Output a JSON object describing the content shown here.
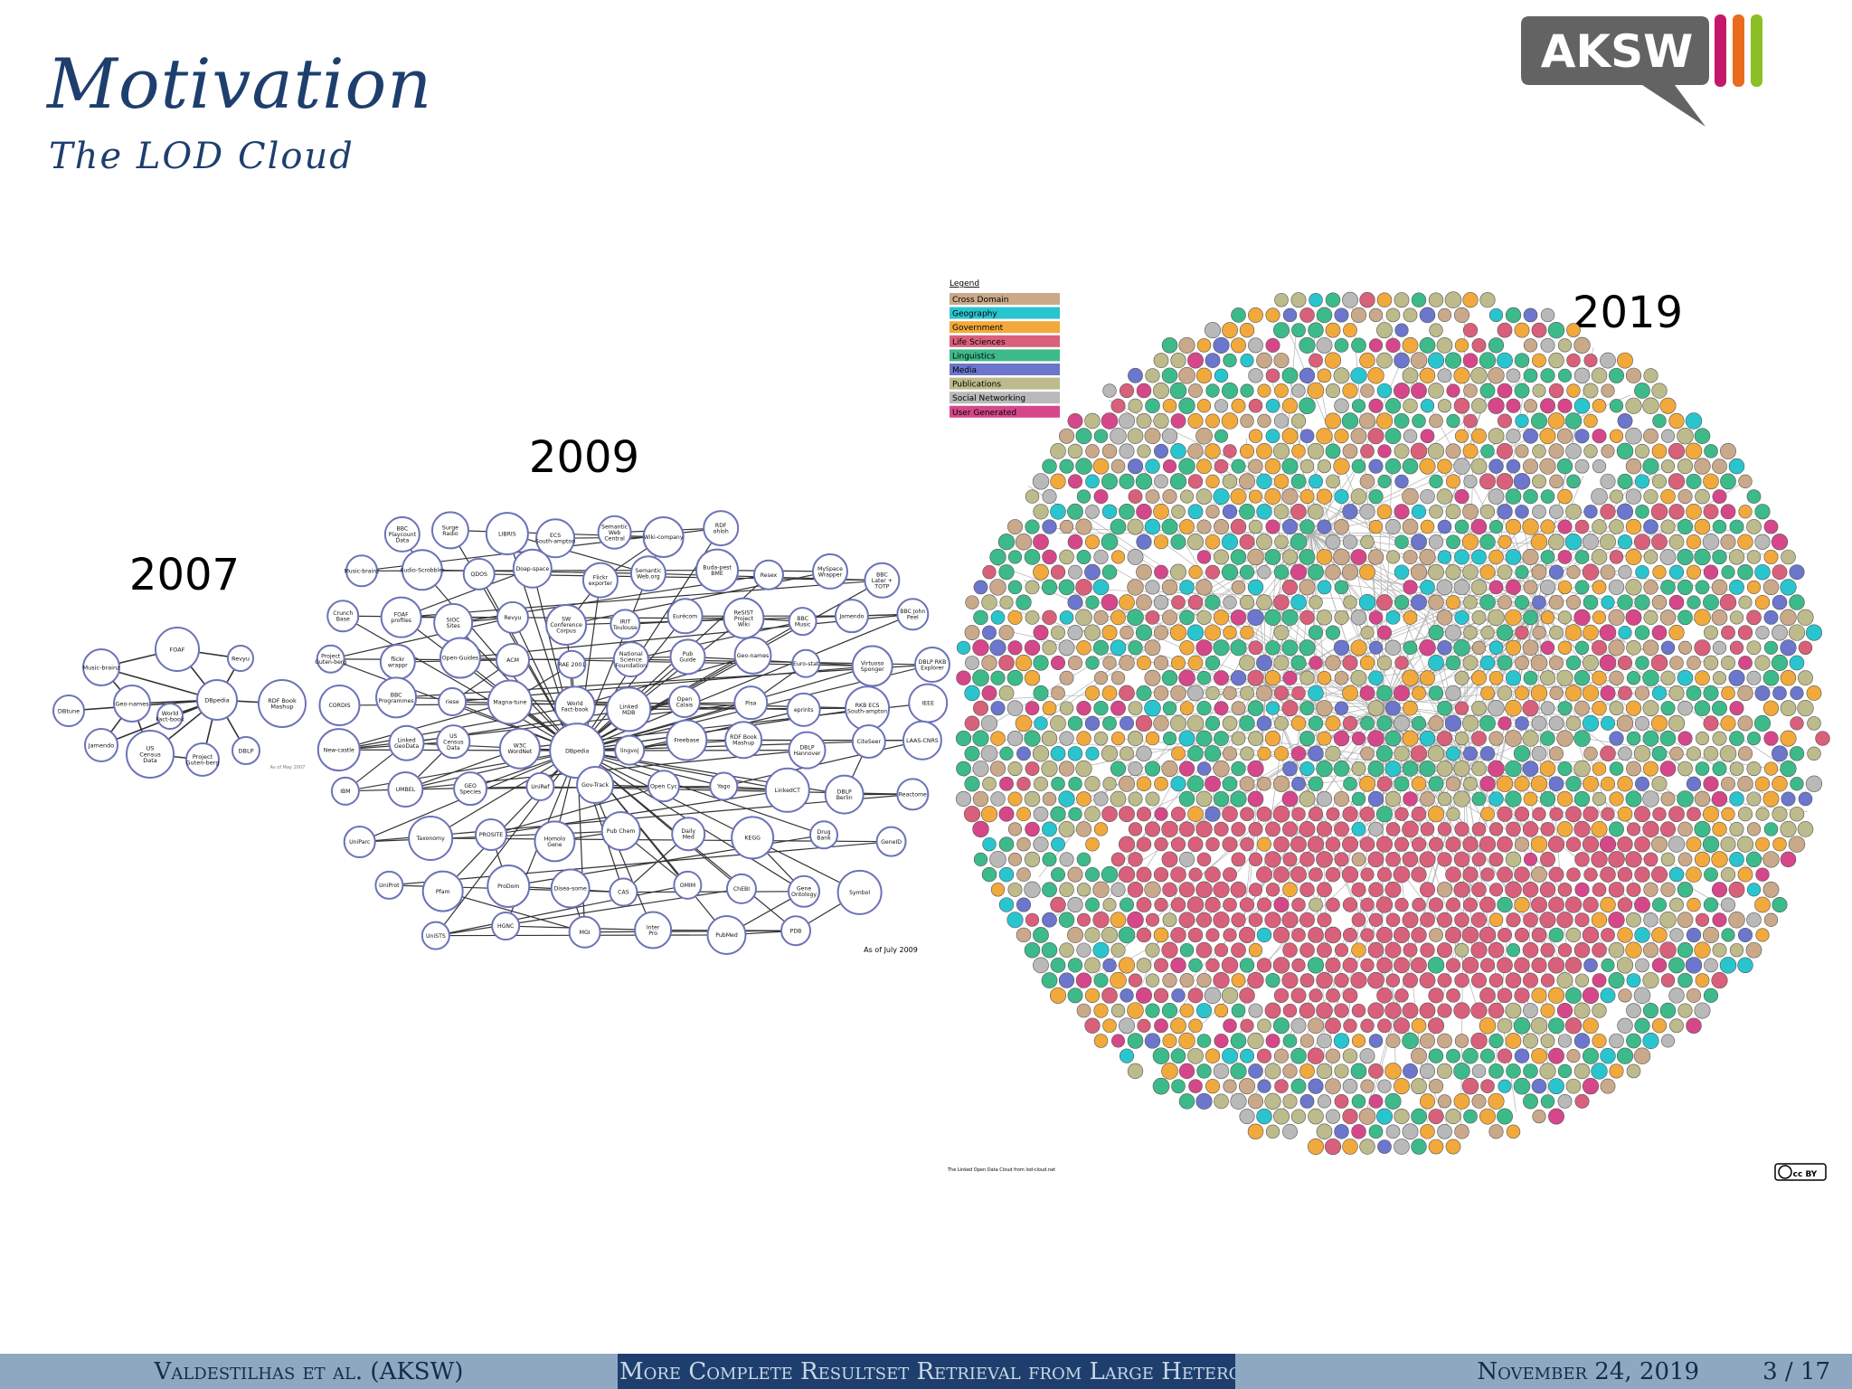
{
  "slide": {
    "title": "Motivation",
    "subtitle": "The LOD Cloud"
  },
  "logo": {
    "text": "AKSW"
  },
  "figure": {
    "cloud_2007": {
      "year": "2007",
      "nodes": [
        "FOAF",
        "Revyu",
        "Music-brainz",
        "DBpedia",
        "Geo-names",
        "RDF Book Mashup",
        "DBtune",
        "World Fact-book",
        "Jamendo",
        "US Census Data",
        "Project Guten-berg",
        "DBLP"
      ],
      "caption": "As of May 2007"
    },
    "cloud_2009": {
      "year": "2009",
      "nodes": [
        "BBC Playcount Data",
        "Surge Radio",
        "LIBRIS",
        "ECS South-ampton",
        "Semantic Web Central",
        "Wiki-company",
        "RDF ohloh",
        "Music-brainz",
        "Audio-Scrobbler",
        "QDOS",
        "Doap-space",
        "Flickr exporter",
        "Semantic Web.org",
        "Buda-pest BME",
        "Resex",
        "MySpace Wrapper",
        "BBC Later + TOTP",
        "Crunch Base",
        "FOAF profiles",
        "SIOC Sites",
        "Revyu",
        "SW Conference Corpus",
        "IRIT Toulouse",
        "Eurécom",
        "ReSIST Project Wiki",
        "BBC Music",
        "Jamendo",
        "BBC John Peel",
        "Project Guten-berg",
        "flickr wrappr",
        "Open-Guides",
        "ACM",
        "RAE 2001",
        "National Science Foundation",
        "Pub Guide",
        "Geo-names",
        "Euro-stat",
        "Virtuoso Sponger",
        "DBLP RKB Explorer",
        "CORDIS",
        "BBC Programmes",
        "riese",
        "Magna-tune",
        "World Fact-book",
        "Linked MDB",
        "Open Calais",
        "Pisa",
        "eprints",
        "RKB ECS South-ampton",
        "IEEE",
        "New-castle",
        "Linked GeoData",
        "US Census Data",
        "W3C WordNet",
        "DBpedia",
        "lingvoj",
        "Freebase",
        "RDF Book Mashup",
        "DBLP Hannover",
        "CiteSeer",
        "LAAS-CNRS",
        "IBM",
        "UMBEL",
        "GEO Species",
        "UniRef",
        "Gov-Track",
        "Open Cyc",
        "Yago",
        "LinkedCT",
        "DBLP Berlin",
        "Reactome",
        "UniParc",
        "Taxonomy",
        "PROSITE",
        "Homolo Gene",
        "Pub Chem",
        "Daily Med",
        "KEGG",
        "Drug Bank",
        "GeneID",
        "UniProt",
        "Pfam",
        "ProDom",
        "Disea-some",
        "CAS",
        "OMIM",
        "ChEBI",
        "Gene Ontology",
        "Symbol",
        "UniSTS",
        "HGNC",
        "MGI",
        "Inter Pro",
        "PubMed",
        "PDB"
      ],
      "caption": "As of July 2009"
    },
    "cloud_2019": {
      "year": "2019",
      "legend_title": "Legend",
      "legend": [
        {
          "label": "Cross Domain",
          "color": "#c9a98a"
        },
        {
          "label": "Geography",
          "color": "#29c5cf"
        },
        {
          "label": "Government",
          "color": "#f2a93b"
        },
        {
          "label": "Life Sciences",
          "color": "#d9607a"
        },
        {
          "label": "Linguistics",
          "color": "#3dba8a"
        },
        {
          "label": "Media",
          "color": "#6b76cc"
        },
        {
          "label": "Publications",
          "color": "#bdba8c"
        },
        {
          "label": "Social Networking",
          "color": "#b9b9b9"
        },
        {
          "label": "User Generated",
          "color": "#d6478a"
        }
      ],
      "caption": "The Linked Open Data Cloud from lod-cloud.net",
      "license_badge": "cc BY"
    }
  },
  "footer": {
    "authors": "Valdestilhas et al.  (AKSW)",
    "talk_title": "More Complete Resultset Retrieval from Large Heterogeneous RDF Sources",
    "date": "November 24, 2019",
    "page": "3 / 17"
  }
}
